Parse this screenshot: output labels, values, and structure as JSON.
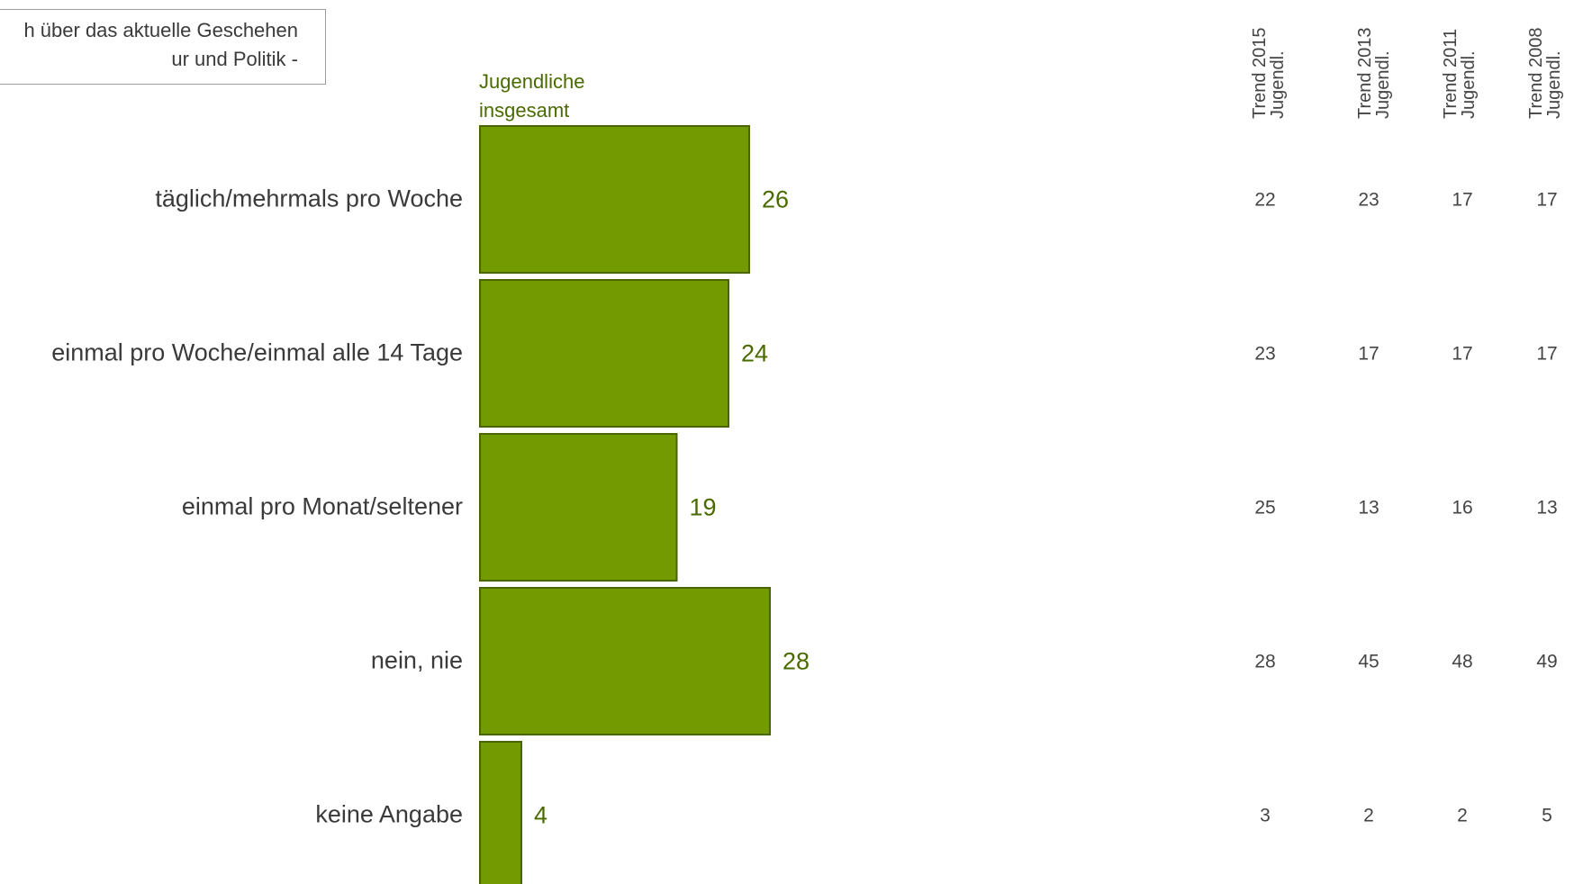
{
  "question": {
    "line1": "h über das aktuelle Geschehen",
    "line2": "ur und Politik -"
  },
  "colors": {
    "bar_fill": "#739b00",
    "bar_stroke": "#4a6400",
    "label_green": "#4a6a00",
    "text": "#3a3a3a",
    "trend_text": "#444444"
  },
  "series_header": {
    "line1": "Jugendliche",
    "line2": "insgesamt"
  },
  "trend_headers": [
    {
      "line1": "Trend 2015",
      "line2": "Jugendl."
    },
    {
      "line1": "Trend 2013",
      "line2": "Jugendl."
    },
    {
      "line1": "Trend 2011",
      "line2": "Jugendl."
    },
    {
      "line1": "Trend 2008",
      "line2": "Jugendl."
    }
  ],
  "chart_data": {
    "type": "bar",
    "orientation": "horizontal",
    "categories": [
      "täglich/mehrmals pro Woche",
      "einmal pro Woche/einmal alle 14 Tage",
      "einmal pro Monat/seltener",
      "nein, nie",
      "keine Angabe"
    ],
    "series": [
      {
        "name": "Jugendliche insgesamt",
        "values": [
          26,
          24,
          19,
          28,
          4
        ]
      }
    ],
    "trend_table": [
      {
        "name": "Trend 2015 Jugendl.",
        "values": [
          22,
          23,
          25,
          28,
          3
        ]
      },
      {
        "name": "Trend 2013 Jugendl.",
        "values": [
          23,
          17,
          13,
          45,
          2
        ]
      },
      {
        "name": "Trend 2011 Jugendl.",
        "values": [
          17,
          17,
          16,
          48,
          2
        ]
      },
      {
        "name": "Trend 2008 Jugendl.",
        "values": [
          17,
          17,
          13,
          49,
          5
        ]
      }
    ],
    "value_labels": true,
    "grid": false
  }
}
